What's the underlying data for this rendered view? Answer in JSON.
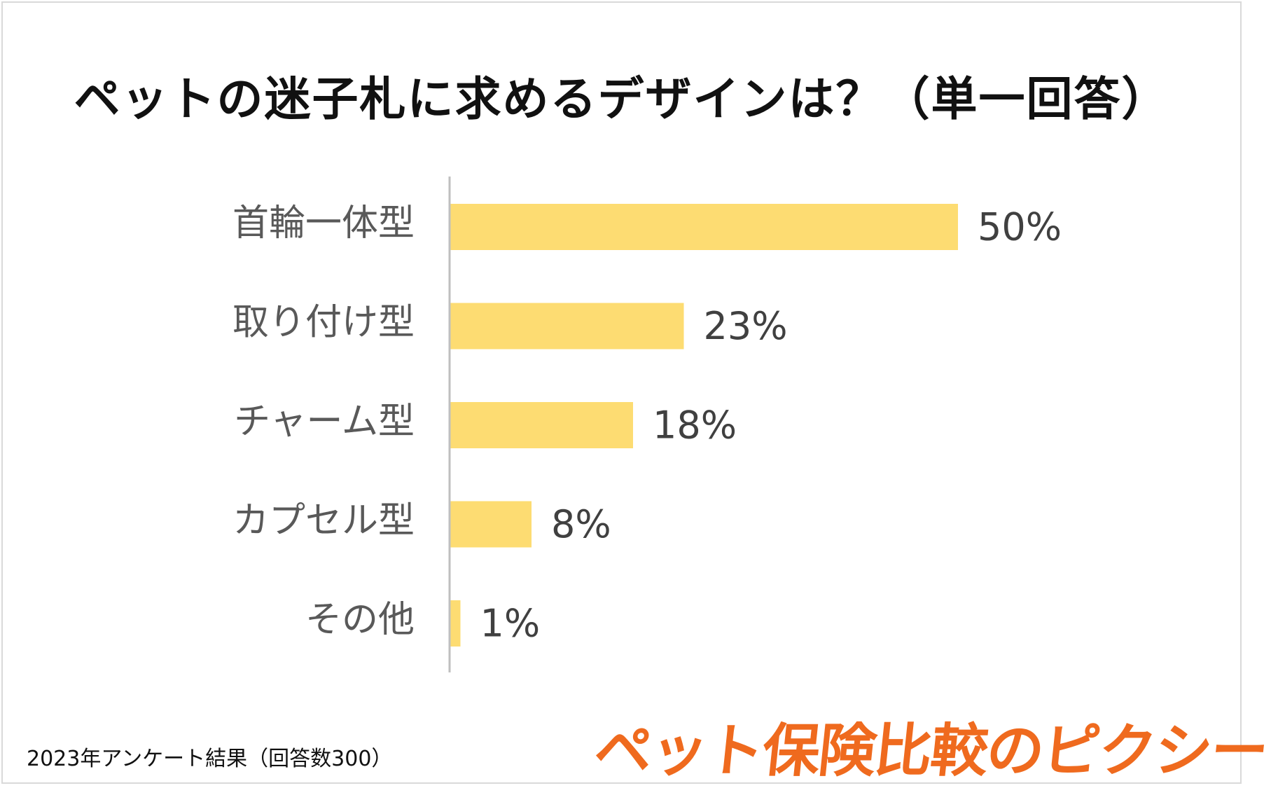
{
  "title": "ペットの迷子札に求めるデザインは？（単一回答）",
  "footnote": "2023年アンケート結果（回答数300）",
  "brand": "ペット保険比較のピクシー",
  "colors": {
    "bar": "#fddc72",
    "axis": "#bfbfbf",
    "category_label": "#595959",
    "value_label": "#404040",
    "brand": "#ef6a1e"
  },
  "chart_data": {
    "type": "bar",
    "orientation": "horizontal",
    "categories": [
      "首輪一体型",
      "取り付け型",
      "チャーム型",
      "カプセル型",
      "その他"
    ],
    "values": [
      50,
      23,
      18,
      8,
      1
    ],
    "value_labels": [
      "50%",
      "23%",
      "18%",
      "8%",
      "1%"
    ],
    "unit": "%",
    "xlim": [
      0,
      100
    ],
    "grid": false,
    "legend": "none"
  }
}
